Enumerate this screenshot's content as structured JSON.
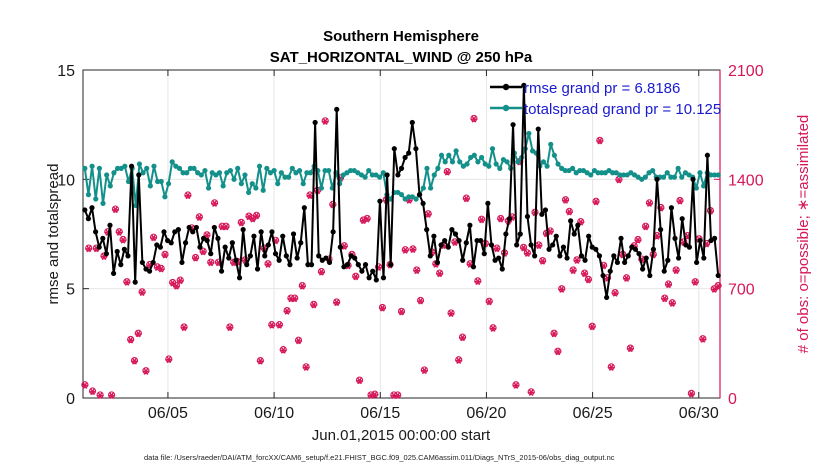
{
  "chart_data": {
    "type": "line",
    "title_line1": "Southern Hemisphere",
    "title_line2": "SAT_HORIZONTAL_WIND @ 250 hPa",
    "xlabel": "Jun.01,2015 00:00:00 start",
    "ylabel_left": "rmse and totalspread",
    "ylabel_right": "# of obs: o=possible; ∗=assimilated",
    "footnote": "data file: /Users/raeder/DAI/ATM_forcXX/CAM6_setup/f.e21.FHIST_BGC.f09_025.CAM6assim.011/Diags_NTrS_2015-06/obs_diag_output.nc",
    "xlim": [
      1,
      31
    ],
    "ylim_left": [
      0,
      15
    ],
    "ylim_right": [
      0,
      2100
    ],
    "x_ticks": [
      5,
      10,
      15,
      20,
      25,
      30
    ],
    "x_tick_labels": [
      "06/05",
      "06/10",
      "06/15",
      "06/20",
      "06/25",
      "06/30"
    ],
    "y_ticks_left": [
      0,
      5,
      10,
      15
    ],
    "y_tick_labels_left": [
      "0",
      "5",
      "10",
      "15"
    ],
    "y_ticks_right": [
      0,
      700,
      1400,
      2100
    ],
    "y_tick_labels_right": [
      "0",
      "700",
      "1400",
      "2100"
    ],
    "series": [
      {
        "name": "rmse",
        "legend": "rmse grand pr = 6.8186",
        "color": "#000000",
        "values": [
          8.6,
          8.2,
          8.7,
          7.6,
          6.9,
          7.3,
          6.6,
          7.9,
          5.7,
          6.7,
          6.1,
          6.8,
          6.5,
          10.6,
          5.3,
          10.2,
          6.2,
          5.9,
          5.8,
          6.2,
          7,
          6.9,
          7.6,
          7.2,
          7.1,
          7.6,
          7.7,
          6.2,
          7.1,
          7.8,
          7.6,
          7.8,
          6.9,
          7.3,
          7.2,
          6.6,
          7.8,
          7.3,
          5.8,
          6.9,
          6.4,
          7.1,
          6.3,
          5.5,
          7.7,
          6.1,
          6.5,
          7.4,
          5.9,
          7.6,
          6.5,
          7,
          7.6,
          6.6,
          6.3,
          7.4,
          6.5,
          6.1,
          7.5,
          6.4,
          7.1,
          8.7,
          6.1,
          6.1,
          12.6,
          6.5,
          6.3,
          6.4,
          6.2,
          7.6,
          13.2,
          6.9,
          6,
          6.1,
          6.5,
          6.4,
          6.1,
          5.8,
          6.1,
          5.5,
          5.8,
          5.4,
          9,
          5.5,
          10.2,
          6.1,
          11.4,
          10.2,
          10.5,
          11,
          11.2,
          12.6,
          11.4,
          9.3,
          8.9,
          7.7,
          6.5,
          7.4,
          6.2,
          7,
          7.2,
          6.9,
          7.7,
          7.5,
          7.2,
          6.3,
          7.1,
          7.9,
          6,
          7.2,
          7.2,
          6.6,
          8.9,
          7,
          6.3,
          6.4,
          5.9,
          7.5,
          8.2,
          12.5,
          7,
          7.5,
          14.3,
          8.3,
          7,
          6.5,
          12.3,
          8.4,
          8.6,
          6.8,
          7,
          7.4,
          6.5,
          6.9,
          6.4,
          8.1,
          7.5,
          7.9,
          6.5,
          6.3,
          7.4,
          6.9,
          6.8,
          6.5,
          5.6,
          4.6,
          5.8,
          6.5,
          6.2,
          7.3,
          6.2,
          6.5,
          6.9,
          6.8,
          6.6,
          5.9,
          6.4,
          5.6,
          6.8,
          10,
          7.7,
          5.8,
          6.3,
          8.7,
          7.3,
          6.4,
          8.2,
          7,
          6.9,
          10,
          6.2,
          7.2,
          6.4,
          11.1,
          7.2,
          7.3,
          5.6
        ]
      },
      {
        "name": "totalspread",
        "legend": "totalspread grand pr = 10.125",
        "color": "#14908a",
        "values": [
          10.5,
          9.3,
          10.6,
          9.1,
          10.5,
          8.9,
          10.2,
          9.7,
          10.3,
          10.5,
          10.5,
          10.6,
          9.9,
          10.5,
          8.8,
          10.7,
          10.3,
          10.5,
          9.7,
          10.6,
          9.9,
          9.9,
          9.2,
          9.8,
          10.8,
          10.6,
          10.5,
          10.3,
          10.3,
          10.5,
          10.5,
          10.3,
          10.2,
          10.4,
          9.6,
          10.3,
          10.2,
          10.3,
          9.7,
          10.3,
          10.4,
          10,
          10.5,
          9.8,
          10.2,
          9.4,
          9.8,
          9.6,
          10.6,
          9.5,
          10.5,
          10.3,
          10.4,
          9.8,
          10.3,
          10.1,
          10.1,
          10.5,
          10.3,
          10.4,
          9.8,
          10.3,
          10.3,
          10.6,
          10.4,
          9.6,
          10.4,
          10.4,
          9.6,
          10.3,
          9.8,
          10.2,
          10.3,
          10.4,
          10.4,
          10.3,
          10.2,
          10.1,
          10.4,
          10.2,
          10.2,
          10.1,
          10.3,
          9.3,
          9.1,
          9.4,
          9.4,
          9.3,
          9.1,
          9.2,
          9.2,
          9.1,
          9.3,
          9.6,
          10.5,
          9.6,
          10.2,
          10.5,
          11.1,
          10.8,
          11.1,
          10.8,
          11.3,
          10.8,
          10.6,
          10.7,
          11,
          11.1,
          10.8,
          11,
          10.7,
          10.6,
          11.4,
          10.7,
          10.5,
          10.9,
          10.8,
          10.5,
          11.2,
          10.8,
          11,
          11.4,
          12.1,
          11.3,
          11.2,
          10.6,
          10.8,
          10.6,
          11.6,
          11.1,
          10.7,
          10.5,
          10.4,
          10.4,
          10.5,
          10.3,
          10.4,
          10.4,
          10.3,
          10.2,
          10.4,
          10.3,
          10.3,
          10.3,
          10.4,
          10.3,
          10.3,
          10.2,
          10.2,
          10.2,
          10.3,
          10.2,
          10.1,
          10,
          10.1,
          10.3,
          10.4,
          10.1,
          10.1,
          10.1,
          10.3,
          10.1,
          10.1,
          10.5,
          10.1,
          10.3,
          10.2,
          10.1,
          9.6,
          10.3,
          9.7,
          10.3,
          10.2,
          10.2,
          10.2
        ]
      },
      {
        "name": "obs_possible",
        "marker": "o",
        "axis": "right",
        "color": "#d6175a",
        "values": [
          85,
          960,
          45,
          960,
          20,
          910,
          1065,
          20,
          1210,
          1065,
          1015,
          745,
          375,
          240,
          415,
          680,
          175,
          855,
          1030,
          840,
          830,
          920,
          250,
          740,
          720,
          755,
          455,
          1300,
          1090,
          900,
          1160,
          940,
          1045,
          870,
          1250,
          870,
          1100,
          1100,
          455,
          870,
          875,
          1125,
          885,
          1165,
          1150,
          1170,
          240,
          960,
          860,
          470,
          1010,
          470,
          310,
          560,
          640,
          640,
          370,
          720,
          200,
          1300,
          600,
          1330,
          810,
          1775,
          890,
          1240,
          615,
          1410,
          975,
          850,
          920,
          780,
          115,
          1140,
          1150,
          20,
          25,
          840,
          580,
          1270,
          855,
          20,
          20,
          555,
          950,
          1270,
          955,
          820,
          625,
          180,
          1180,
          935,
          860,
          800,
          980,
          1450,
          545,
          1000,
          245,
          390,
          1280,
          860,
          1790,
          750,
          1145,
          990,
          620,
          450,
          960,
          1150,
          930,
          1135,
          1160,
          85,
          1515,
          965,
          930,
          40,
          1190,
          980,
          880,
          1055,
          1070,
          415,
          300,
          700,
          1270,
          1195,
          820,
          885,
          1130,
          800,
          760,
          460,
          1260,
          1650,
          850,
          770,
          200,
          675,
          1400,
          920,
          770,
          320,
          975,
          1015,
          890,
          1100,
          1250,
          920,
          1040,
          1220,
          640,
          730,
          610,
          820,
          1265,
          1000,
          1040,
          30,
          745,
          1020,
          380,
          990,
          1200,
          700,
          720
        ]
      },
      {
        "name": "obs_assimilated",
        "marker": "*",
        "axis": "right",
        "color": "#d6175a",
        "values": [
          80,
          955,
          40,
          955,
          15,
          905,
          1060,
          15,
          1205,
          1060,
          1010,
          740,
          370,
          235,
          410,
          675,
          170,
          850,
          1025,
          835,
          825,
          915,
          245,
          735,
          715,
          750,
          450,
          1295,
          1085,
          895,
          1155,
          935,
          1040,
          865,
          1245,
          865,
          1095,
          1095,
          450,
          865,
          870,
          1120,
          880,
          1160,
          1145,
          1165,
          235,
          955,
          855,
          465,
          1005,
          465,
          305,
          555,
          635,
          635,
          365,
          715,
          195,
          1295,
          595,
          1325,
          805,
          1770,
          885,
          1235,
          610,
          1405,
          970,
          845,
          915,
          775,
          110,
          1135,
          1145,
          15,
          20,
          835,
          575,
          1265,
          850,
          15,
          15,
          550,
          945,
          1265,
          950,
          815,
          620,
          175,
          1175,
          930,
          855,
          795,
          975,
          1445,
          540,
          995,
          240,
          385,
          1275,
          855,
          1785,
          745,
          1140,
          985,
          615,
          445,
          955,
          1145,
          925,
          1130,
          1155,
          80,
          1510,
          960,
          925,
          35,
          1185,
          975,
          875,
          1050,
          1065,
          410,
          295,
          695,
          1265,
          1190,
          815,
          880,
          1125,
          795,
          755,
          455,
          1255,
          1645,
          845,
          765,
          195,
          670,
          1395,
          915,
          765,
          315,
          970,
          1010,
          885,
          1095,
          1245,
          915,
          1035,
          1215,
          635,
          725,
          605,
          815,
          1260,
          995,
          1035,
          25,
          740,
          1015,
          375,
          985,
          1195,
          695,
          715
        ]
      }
    ]
  }
}
